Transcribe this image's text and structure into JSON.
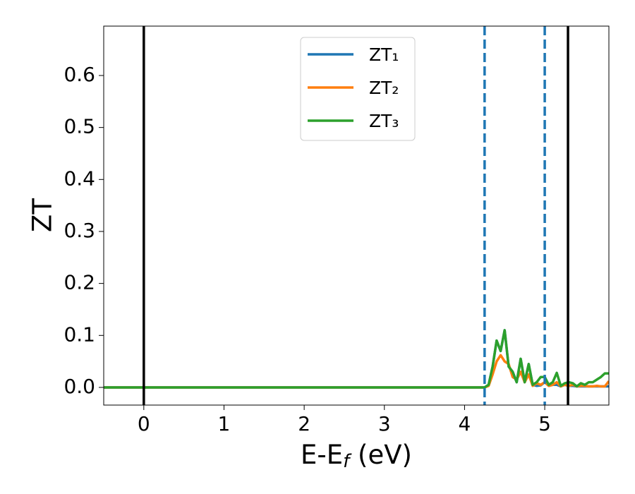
{
  "chart_data": {
    "type": "line",
    "x_label": {
      "main": "E-E",
      "sub": "f",
      "tail": " (eV)"
    },
    "y_label": "ZT",
    "x": [
      -0.5,
      4.2,
      4.25,
      4.3,
      4.35,
      4.4,
      4.45,
      4.5,
      4.55,
      4.6,
      4.65,
      4.7,
      4.75,
      4.8,
      4.85,
      4.9,
      4.95,
      5.0,
      5.05,
      5.1,
      5.15,
      5.2,
      5.25,
      5.3,
      5.35,
      5.4,
      5.45,
      5.5,
      5.55,
      5.6,
      5.65,
      5.7,
      5.75,
      5.8
    ],
    "series": [
      {
        "name": "ZT₁",
        "color": "#1f77b4",
        "values": [
          0,
          0,
          0,
          0.005,
          0.04,
          0.09,
          0.07,
          0.11,
          0.04,
          0.03,
          0.01,
          0.055,
          0.01,
          0.045,
          0.005,
          0.003,
          0.004,
          0.01,
          0.003,
          0.005,
          0.005,
          0.002,
          0.005,
          0.003,
          0.003,
          0.002,
          0.002,
          0.002,
          0.002,
          0.002,
          0.002,
          0.002,
          0.002,
          0.002
        ]
      },
      {
        "name": "ZT₂",
        "color": "#ff7f0e",
        "values": [
          0,
          0,
          0,
          0.003,
          0.025,
          0.05,
          0.062,
          0.05,
          0.045,
          0.02,
          0.015,
          0.03,
          0.01,
          0.025,
          0.003,
          0.008,
          0.005,
          0.01,
          0.003,
          0.005,
          0.01,
          0.002,
          0.005,
          0.003,
          0.005,
          0.002,
          0.003,
          0.003,
          0.002,
          0.002,
          0.003,
          0.002,
          0.002,
          0.012
        ]
      },
      {
        "name": "ZT₃",
        "color": "#2ca02c",
        "values": [
          0,
          0,
          0,
          0.005,
          0.04,
          0.09,
          0.07,
          0.11,
          0.04,
          0.03,
          0.01,
          0.055,
          0.01,
          0.045,
          0.005,
          0.01,
          0.02,
          0.02,
          0.005,
          0.01,
          0.028,
          0.003,
          0.008,
          0.01,
          0.008,
          0.002,
          0.008,
          0.005,
          0.01,
          0.01,
          0.015,
          0.02,
          0.027,
          0.027
        ]
      }
    ],
    "vlines": [
      {
        "x": 0,
        "color": "#000000",
        "dashed": false
      },
      {
        "x": 4.25,
        "color": "#1f77b4",
        "dashed": true
      },
      {
        "x": 5.0,
        "color": "#1f77b4",
        "dashed": true
      },
      {
        "x": 5.29,
        "color": "#000000",
        "dashed": false
      }
    ],
    "xlim": [
      -0.5,
      5.8
    ],
    "ylim": [
      -0.034,
      0.695
    ],
    "xticks": [
      0,
      1,
      2,
      3,
      4,
      5
    ],
    "yticks": [
      {
        "value": 0,
        "label": "0.0"
      },
      0.1,
      0.2,
      0.3,
      0.4,
      0.5,
      0.6
    ],
    "legend": "upper center"
  }
}
